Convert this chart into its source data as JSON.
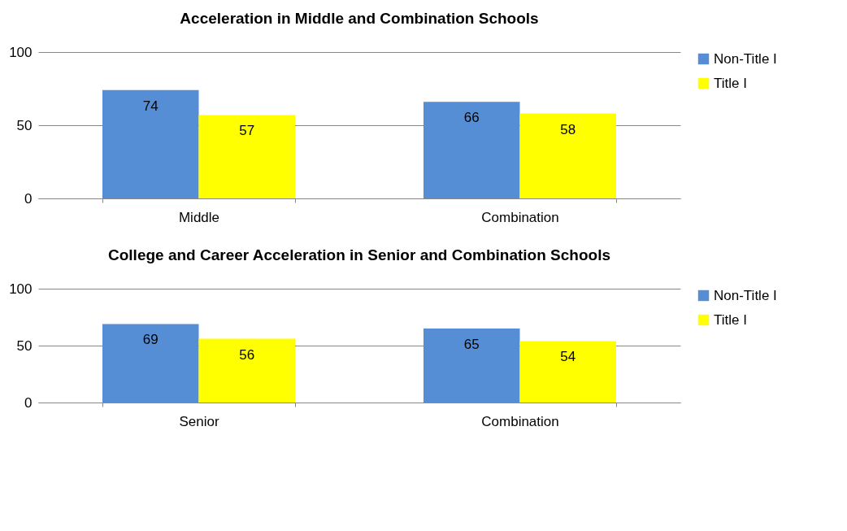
{
  "chart_data": [
    {
      "type": "bar",
      "title": "Acceleration in Middle and Combination Schools",
      "categories": [
        "Middle",
        "Combination"
      ],
      "series": [
        {
          "name": "Non-Title I",
          "color": "#558ed5",
          "values": [
            74,
            66
          ]
        },
        {
          "name": "Title I",
          "color": "#ffff00",
          "values": [
            57,
            58
          ]
        }
      ],
      "ylim": [
        0,
        100
      ],
      "yticks": [
        0,
        50,
        100
      ],
      "grid": "y",
      "legend": "right",
      "data_labels": true
    },
    {
      "type": "bar",
      "title": "College and Career Acceleration in Senior and Combination Schools",
      "categories": [
        "Senior",
        "Combination"
      ],
      "series": [
        {
          "name": "Non-Title I",
          "color": "#558ed5",
          "values": [
            69,
            65
          ]
        },
        {
          "name": "Title I",
          "color": "#ffff00",
          "values": [
            56,
            54
          ]
        }
      ],
      "ylim": [
        0,
        100
      ],
      "yticks": [
        0,
        50,
        100
      ],
      "grid": "y",
      "legend": "right",
      "data_labels": true
    }
  ]
}
